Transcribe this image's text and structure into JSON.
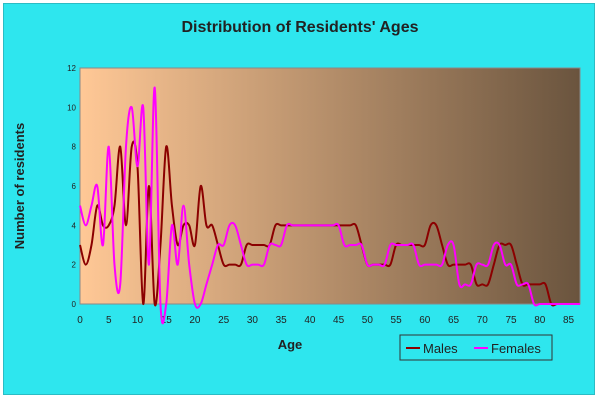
{
  "chart_data": {
    "type": "line",
    "title": "Distribution of Residents' Ages",
    "xlabel": "Age",
    "ylabel": "Number of residents",
    "xlim": [
      0,
      87
    ],
    "ylim": [
      0,
      12
    ],
    "x_ticks": [
      0,
      5,
      10,
      15,
      20,
      25,
      30,
      35,
      40,
      45,
      50,
      55,
      60,
      65,
      70,
      75,
      80,
      85
    ],
    "y_ticks": [
      0,
      2,
      4,
      6,
      8,
      10,
      12
    ],
    "grid": false,
    "legend_position": "bottom-right",
    "background": {
      "from": "#ffc896",
      "to": "#6a543e"
    },
    "series": [
      {
        "name": "Males",
        "color": "#8b0000",
        "x": [
          0,
          1,
          2,
          3,
          4,
          5,
          6,
          7,
          8,
          9,
          10,
          11,
          12,
          13,
          14,
          15,
          16,
          17,
          18,
          19,
          20,
          21,
          22,
          23,
          24,
          25,
          26,
          27,
          28,
          29,
          30,
          31,
          32,
          33,
          34,
          35,
          36,
          37,
          38,
          39,
          40,
          41,
          42,
          43,
          44,
          45,
          46,
          47,
          48,
          49,
          50,
          51,
          52,
          53,
          54,
          55,
          56,
          57,
          58,
          59,
          60,
          61,
          62,
          63,
          64,
          65,
          66,
          67,
          68,
          69,
          70,
          71,
          72,
          73,
          74,
          75,
          76,
          77,
          78,
          79,
          80,
          81,
          82,
          83,
          84,
          85,
          86,
          87
        ],
        "y": [
          3,
          2,
          3,
          5,
          4,
          4,
          5,
          8,
          4,
          8,
          7,
          0,
          6,
          0,
          3,
          8,
          5,
          3,
          4,
          4,
          3,
          6,
          4,
          4,
          3,
          2,
          2,
          2,
          2,
          3,
          3,
          3,
          3,
          3,
          4,
          4,
          4,
          4,
          4,
          4,
          4,
          4,
          4,
          4,
          4,
          4,
          4,
          4,
          4,
          3,
          2,
          2,
          2,
          2,
          2,
          3,
          3,
          3,
          3,
          3,
          3,
          4,
          4,
          3,
          2,
          2,
          2,
          2,
          2,
          1,
          1,
          1,
          2,
          3,
          3,
          3,
          2,
          1,
          1,
          1,
          1,
          1,
          0,
          0,
          0,
          0,
          0,
          0
        ]
      },
      {
        "name": "Females",
        "color": "#ff00ff",
        "x": [
          0,
          1,
          2,
          3,
          4,
          5,
          6,
          7,
          8,
          9,
          10,
          11,
          12,
          13,
          14,
          15,
          16,
          17,
          18,
          19,
          20,
          21,
          22,
          23,
          24,
          25,
          26,
          27,
          28,
          29,
          30,
          31,
          32,
          33,
          34,
          35,
          36,
          37,
          38,
          39,
          40,
          41,
          42,
          43,
          44,
          45,
          46,
          47,
          48,
          49,
          50,
          51,
          52,
          53,
          54,
          55,
          56,
          57,
          58,
          59,
          60,
          61,
          62,
          63,
          64,
          65,
          66,
          67,
          68,
          69,
          70,
          71,
          72,
          73,
          74,
          75,
          76,
          77,
          78,
          79,
          80,
          81,
          82,
          83,
          84,
          85,
          86,
          87
        ],
        "y": [
          5,
          4,
          5,
          6,
          3,
          8,
          2,
          1,
          8,
          10,
          7,
          10,
          2,
          11,
          0,
          0,
          4,
          2,
          5,
          2,
          0,
          0,
          1,
          2,
          3,
          3,
          4,
          4,
          3,
          2,
          2,
          2,
          2,
          3,
          3,
          3,
          4,
          4,
          4,
          4,
          4,
          4,
          4,
          4,
          4,
          4,
          3,
          3,
          3,
          3,
          2,
          2,
          2,
          2,
          3,
          3,
          3,
          3,
          3,
          2,
          2,
          2,
          2,
          2,
          3,
          3,
          1,
          1,
          1,
          2,
          2,
          2,
          3,
          3,
          2,
          2,
          1,
          1,
          1,
          0,
          0,
          0,
          0,
          0,
          0,
          0,
          0,
          0
        ]
      }
    ]
  }
}
